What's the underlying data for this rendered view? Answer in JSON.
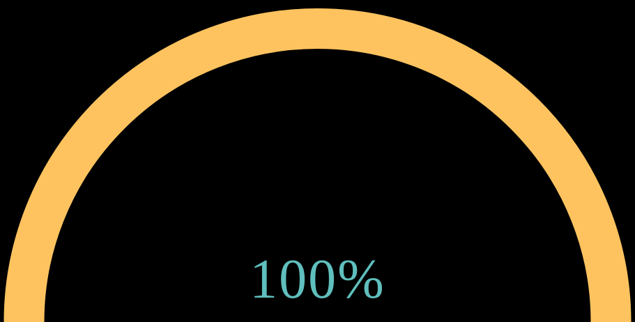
{
  "gauge": {
    "label": "100%",
    "value_fraction": 1.0,
    "colors": {
      "background": "#000000",
      "arc": "#fec35f",
      "label": "#5fbfbd"
    }
  }
}
